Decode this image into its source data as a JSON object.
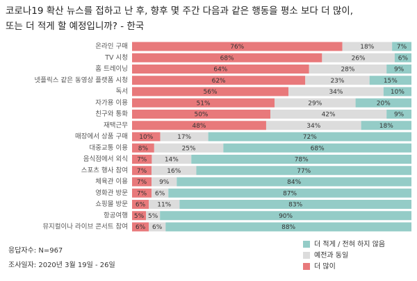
{
  "chart_data": {
    "type": "stacked-bar-horizontal",
    "title": [
      "코로나19 확산 뉴스를 접하고 난 후, 향후 몇 주간 다음과 같은 행동을 평소 보다 더 많이,",
      "또는 더 적게 할 예정입니까? - 한국"
    ],
    "categories": [
      "온라인 구매",
      "TV 시청",
      "홈 트레이닝",
      "넷플릭스 같은 동영상 플랫폼 시청",
      "독서",
      "자가용 이용",
      "친구와 통화",
      "재택근무",
      "매장에서 상품 구매",
      "대중교통 이용",
      "음식점에서 외식",
      "스포츠 행사 참여",
      "체육관 이용",
      "영화관 방문",
      "쇼핑몰 방문",
      "항공여행",
      "뮤지컬이나 라이브 콘서트 참여"
    ],
    "series": [
      {
        "name": "더 많이",
        "color": "#e8797b",
        "values": [
          76,
          68,
          64,
          62,
          56,
          51,
          50,
          48,
          10,
          8,
          7,
          7,
          7,
          7,
          6,
          5,
          6
        ],
        "value_labels": [
          "76%",
          "68%",
          "64%",
          "62%",
          "56%",
          "51%",
          "50%",
          "48%",
          "10%",
          "8%",
          "7%",
          "7%",
          "7%",
          "7%",
          "6%",
          "5%",
          "6%"
        ]
      },
      {
        "name": "예전과 동일",
        "color": "#dcdcdc",
        "values": [
          18,
          26,
          28,
          23,
          34,
          29,
          42,
          34,
          17,
          25,
          14,
          16,
          9,
          6,
          11,
          5,
          6
        ],
        "value_labels": [
          "18%",
          "26%",
          "28%",
          "23%",
          "34%",
          "29%",
          "42%",
          "34%",
          "17%",
          "25%",
          "14%",
          "16%",
          "9%",
          "6%",
          "11%",
          "5%",
          "6%"
        ]
      },
      {
        "name": "더 적게 / 전혀 하지 않음",
        "color": "#94ccc7",
        "values": [
          7,
          6,
          9,
          15,
          10,
          20,
          9,
          18,
          72,
          68,
          78,
          77,
          84,
          87,
          83,
          90,
          88
        ],
        "value_labels": [
          "7%",
          "6%",
          "9%",
          "15%",
          "10%",
          "20%",
          "9%",
          "18%",
          "72%",
          "68%",
          "78%",
          "77%",
          "84%",
          "87%",
          "83%",
          "90%",
          "88%"
        ]
      }
    ],
    "notes": [
      "응답자수: N=967",
      "조사일자: 2020년 3월 19일 - 26일"
    ]
  }
}
